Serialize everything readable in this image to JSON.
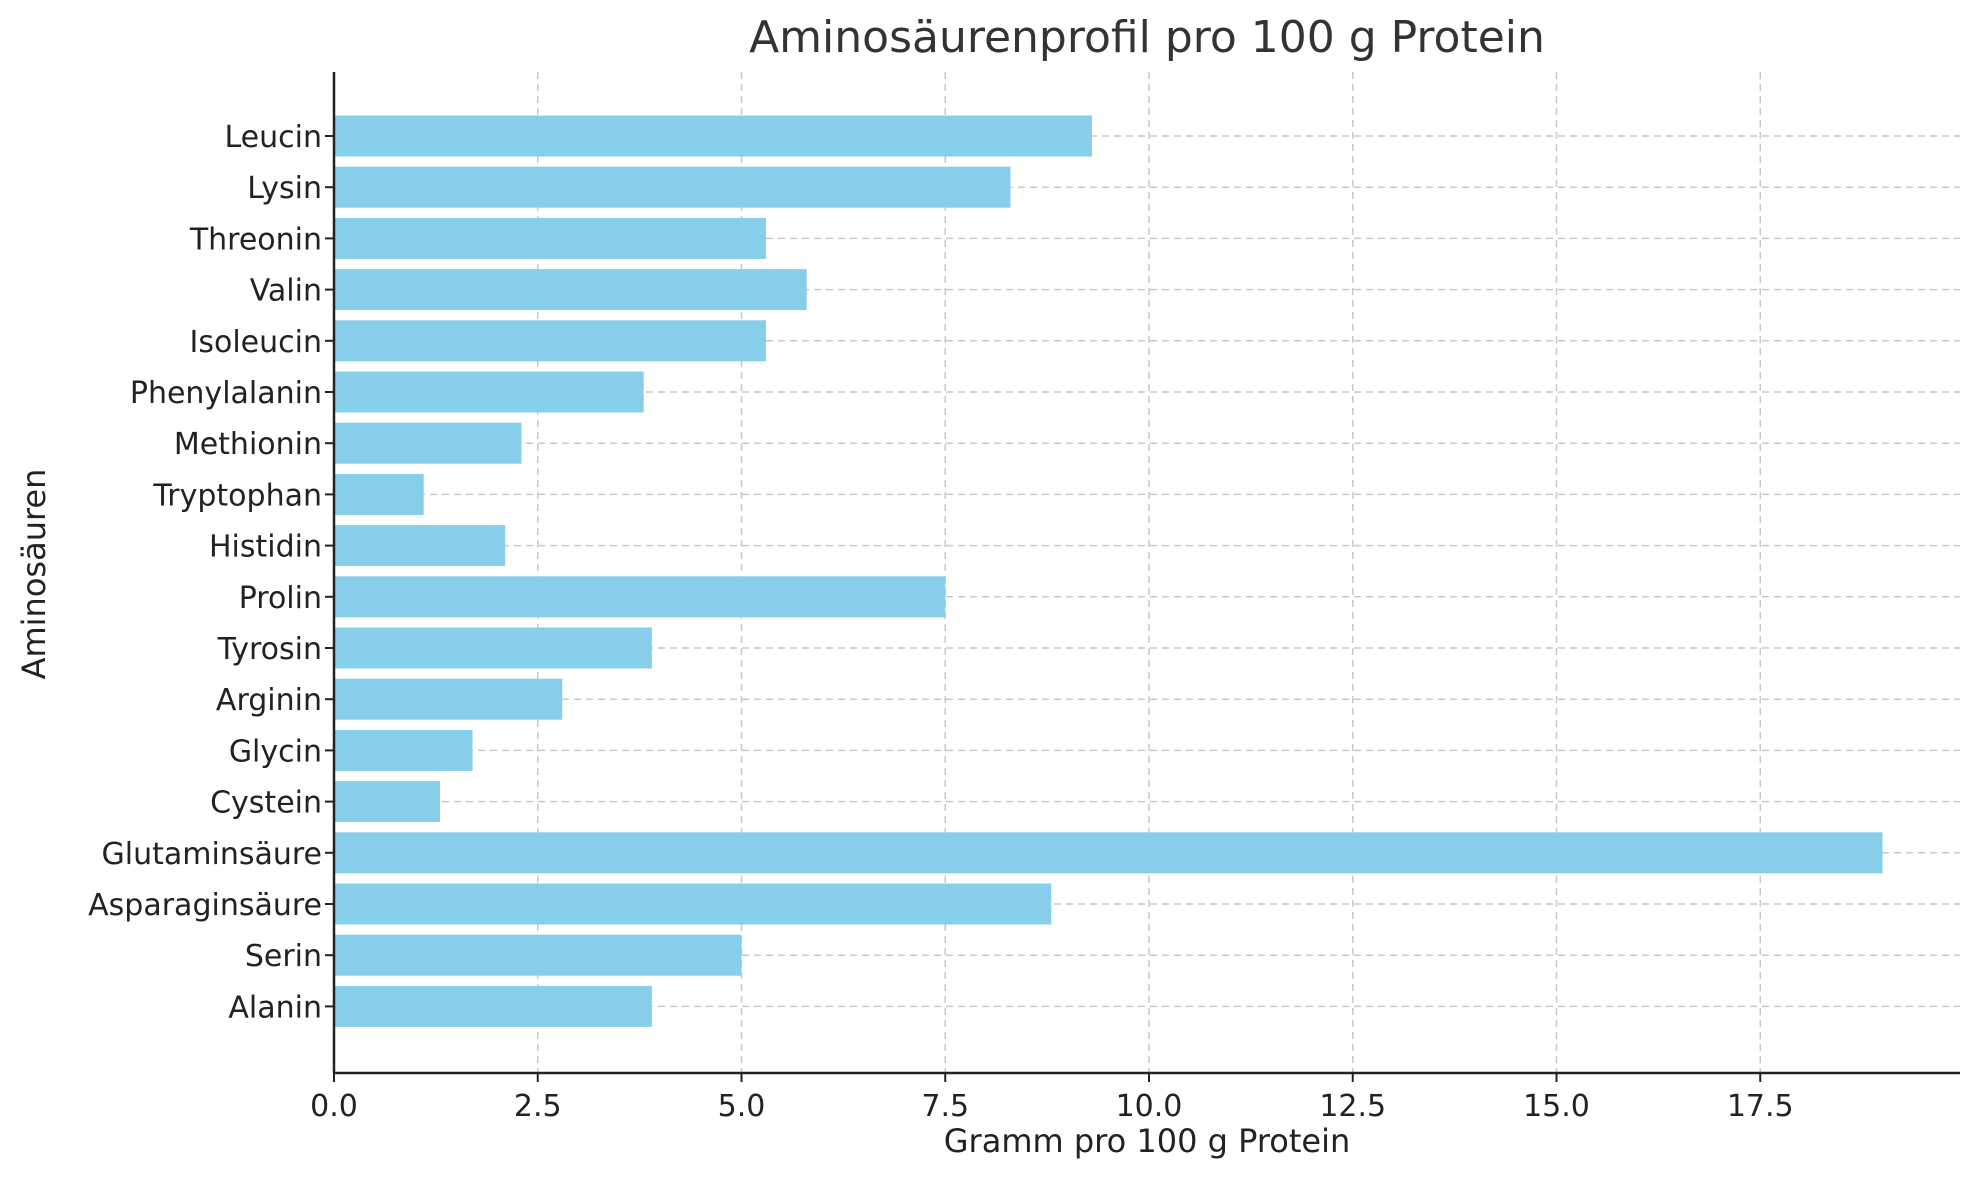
{
  "chart_data": {
    "type": "bar",
    "orientation": "horizontal",
    "title": "Aminosäurenprofil pro 100 g Protein",
    "xlabel": "Gramm pro 100 g Protein",
    "ylabel": "Aminosäuren",
    "xlim": [
      0,
      20
    ],
    "xticks": [
      "0.0",
      "2.5",
      "5.0",
      "7.5",
      "10.0",
      "12.5",
      "15.0",
      "17.5"
    ],
    "xtick_values": [
      0,
      2.5,
      5,
      7.5,
      10,
      12.5,
      15,
      17.5
    ],
    "grid": true,
    "bar_color": "#87ceeb",
    "categories": [
      "Leucin",
      "Lysin",
      "Threonin",
      "Valin",
      "Isoleucin",
      "Phenylalanin",
      "Methionin",
      "Tryptophan",
      "Histidin",
      "Prolin",
      "Tyrosin",
      "Arginin",
      "Glycin",
      "Cystein",
      "Glutaminsäure",
      "Asparaginsäure",
      "Serin",
      "Alanin"
    ],
    "values": [
      9.3,
      8.3,
      5.3,
      5.8,
      5.3,
      3.8,
      2.3,
      1.1,
      2.1,
      7.5,
      3.9,
      2.8,
      1.7,
      1.3,
      19.0,
      8.8,
      5.0,
      3.9
    ]
  }
}
